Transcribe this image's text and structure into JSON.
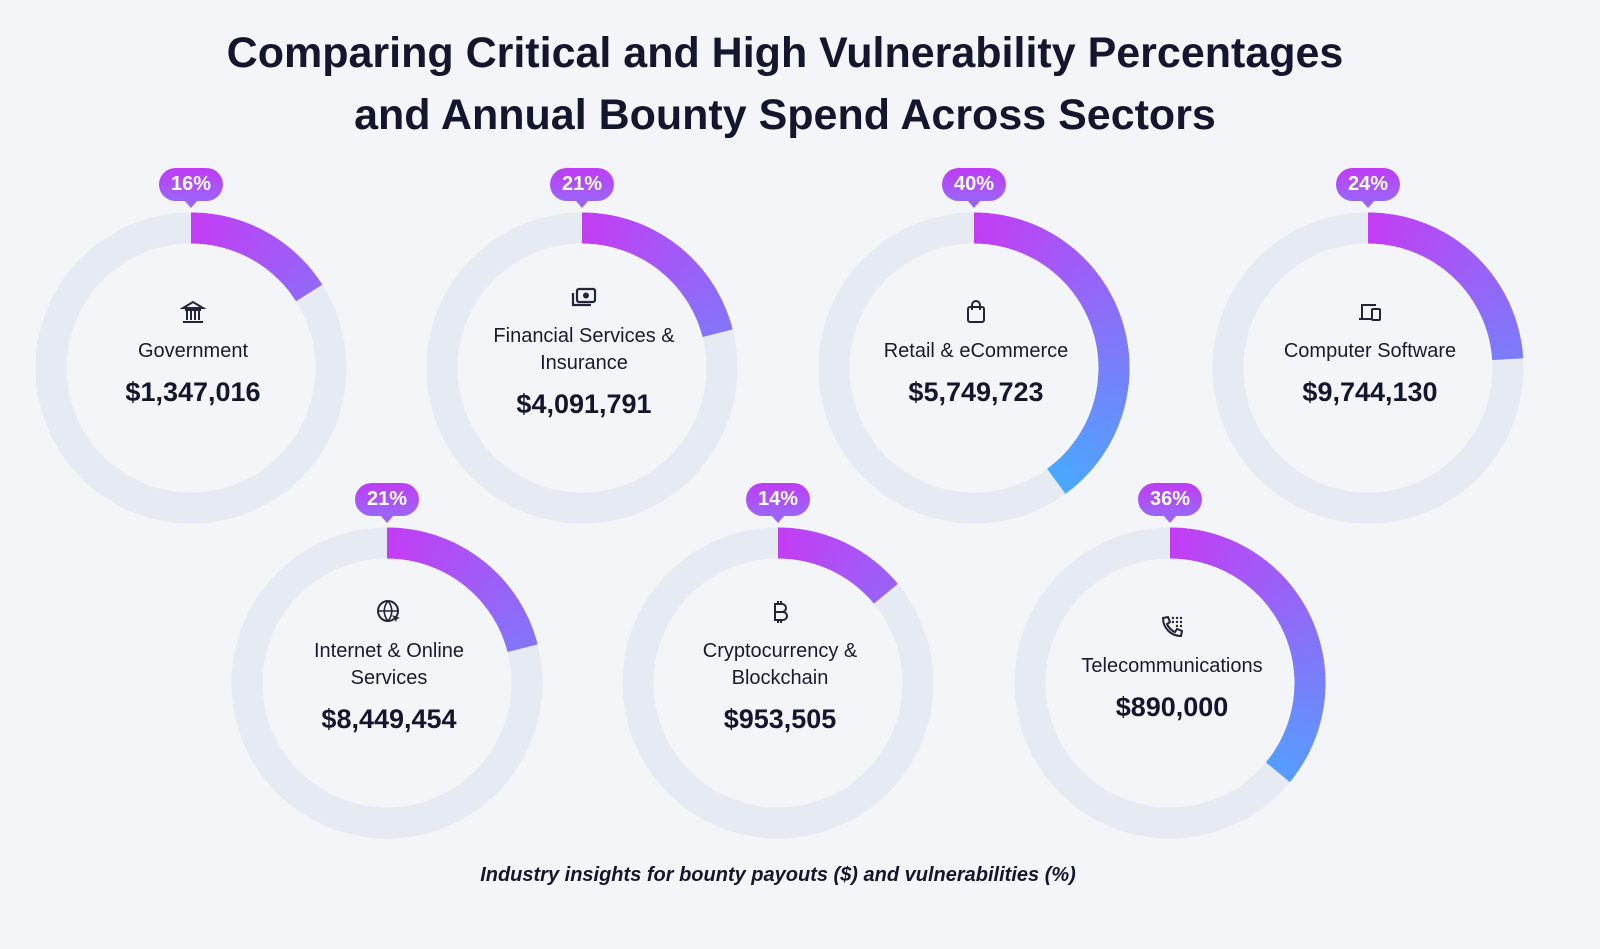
{
  "chart_data": {
    "type": "donut",
    "title": [
      "Comparing Critical and High Vulnerability Percentages",
      "and Annual Bounty Spend Across Sectors"
    ],
    "caption": "Industry insights for bounty payouts ($) and vulnerabilities (%)",
    "colors": {
      "arc_start": "#c43cf4",
      "arc_end": "#4aa8ff",
      "track": "#e6eaf2",
      "badge": "#b048f6"
    },
    "sectors": [
      {
        "label": "Government",
        "percent": 16,
        "percent_label": "16%",
        "spend": "$1,347,016",
        "icon": "bank-icon"
      },
      {
        "label": "Financial Services & Insurance",
        "percent": 21,
        "percent_label": "21%",
        "spend": "$4,091,791",
        "icon": "money-icon"
      },
      {
        "label": "Retail & eCommerce",
        "percent": 40,
        "percent_label": "40%",
        "spend": "$5,749,723",
        "icon": "shopping-bag-icon"
      },
      {
        "label": "Computer Software",
        "percent": 24,
        "percent_label": "24%",
        "spend": "$9,744,130",
        "icon": "devices-icon"
      },
      {
        "label": "Internet & Online Services",
        "percent": 21,
        "percent_label": "21%",
        "spend": "$8,449,454",
        "icon": "globe-cursor-icon"
      },
      {
        "label": "Cryptocurrency & Blockchain",
        "percent": 14,
        "percent_label": "14%",
        "spend": "$953,505",
        "icon": "bitcoin-icon"
      },
      {
        "label": "Telecommunications",
        "percent": 36,
        "percent_label": "36%",
        "spend": "$890,000",
        "icon": "phone-dialpad-icon"
      }
    ]
  }
}
